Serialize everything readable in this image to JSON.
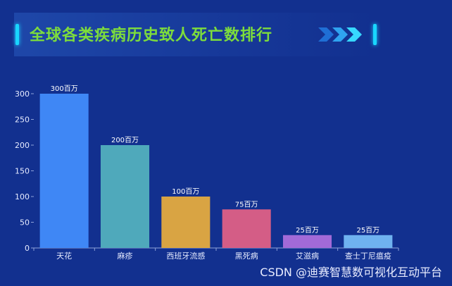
{
  "page": {
    "title": "全球各类疾病历史致人死亡数排行",
    "watermark": "CSDN @迪赛智慧数可视化互动平台"
  },
  "chart_data": {
    "type": "bar",
    "title": "全球各类疾病历史致人死亡数排行",
    "categories": [
      "天花",
      "麻疹",
      "西班牙流感",
      "黑死病",
      "艾滋病",
      "查士丁尼瘟疫"
    ],
    "values": [
      300,
      200,
      100,
      75,
      25,
      25
    ],
    "data_labels": [
      "300百万",
      "200百万",
      "100百万",
      "75百万",
      "25百万",
      "25百万"
    ],
    "colors": [
      "#3f87f5",
      "#4fa9bb",
      "#d9a443",
      "#d45d86",
      "#a26ad8",
      "#6fb2f0"
    ],
    "ylim": [
      0,
      300
    ],
    "yticks": [
      0,
      50,
      100,
      150,
      200,
      250,
      300
    ],
    "xlabel": "",
    "ylabel": "",
    "grid": false,
    "legend": "none"
  }
}
